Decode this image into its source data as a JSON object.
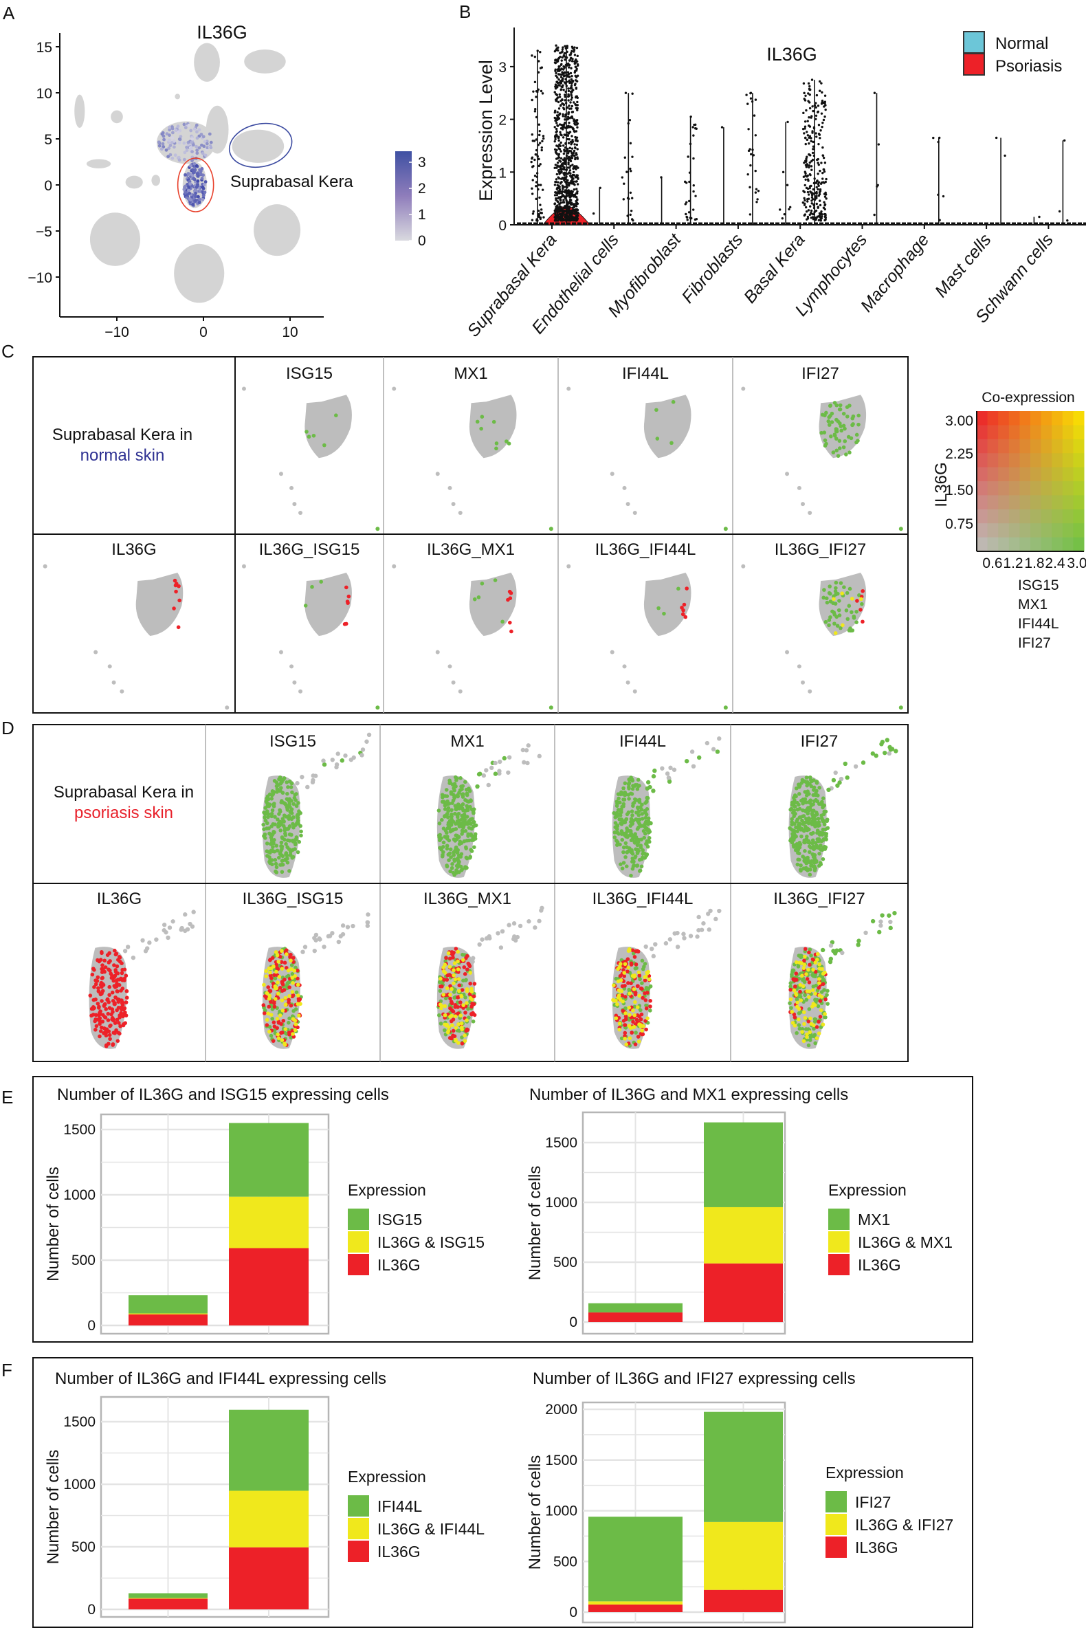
{
  "panel_labels": {
    "A": "A",
    "B": "B",
    "C": "C",
    "D": "D",
    "E": "E",
    "F": "F"
  },
  "panel_a": {
    "title": "IL36G",
    "annotation": "Suprabasal Kera",
    "x_ticks": [
      "−10",
      "0",
      "10"
    ],
    "y_ticks": [
      "15",
      "10",
      "5",
      "0",
      "−5",
      "−10"
    ],
    "colorbar_ticks": [
      "3",
      "2",
      "1",
      "0"
    ],
    "colorbar_colors": {
      "high": "#3f51a3",
      "low": "#d9d9df"
    },
    "circle_colors": {
      "normal": "#3b4aa0",
      "psoriasis": "#e8412c"
    }
  },
  "panel_c": {
    "row_label_1": "Suprabasal Kera in",
    "row_label_2": "normal skin",
    "row_label_2_color": "#2e3192",
    "top_titles": [
      "ISG15",
      "MX1",
      "IFI44L",
      "IFI27"
    ],
    "bottom_titles": [
      "IL36G",
      "IL36G_ISG15",
      "IL36G_MX1",
      "IL36G_IFI44L",
      "IL36G_IFI27"
    ]
  },
  "panel_d": {
    "row_label_1": "Suprabasal Kera in",
    "row_label_2": "psoriasis skin",
    "row_label_2_color": "#e8212b",
    "top_titles": [
      "ISG15",
      "MX1",
      "IFI44L",
      "IFI27"
    ],
    "bottom_titles": [
      "IL36G",
      "IL36G_ISG15",
      "IL36G_MX1",
      "IL36G_IFI44L",
      "IL36G_IFI27"
    ]
  },
  "coexpression_legend": {
    "title": "Co-expression",
    "y_label": "IL36G",
    "y_ticks": [
      "3.00",
      "2.25",
      "1.50",
      "0.75"
    ],
    "x_ticks": [
      "0.6",
      "1.2",
      "1.8",
      "2.4",
      "3.0"
    ],
    "genes": [
      "ISG15",
      "MX1",
      "IFI44L",
      "IFI27"
    ],
    "colors": {
      "none": "#c0c0c0",
      "il36g": "#ed1c24",
      "gene": "#6abe45",
      "both": "#ffe600"
    }
  },
  "chart_data": [
    {
      "type": "violin",
      "title": "IL36G",
      "ylabel": "Expression Level",
      "xlabel": "",
      "ylim": [
        0,
        3.5
      ],
      "y_ticks": [
        "0",
        "1",
        "2",
        "3"
      ],
      "categories": [
        "Suprabasal Kera",
        "Endothelial cells",
        "Myofibroblast",
        "Fibroblasts",
        "Basal Kera",
        "Lymphocytes",
        "Macrophage",
        "Mast cells",
        "Schwann cells"
      ],
      "legend": [
        {
          "name": "Normal",
          "color": "#6cc6d8"
        },
        {
          "name": "Psoriasis",
          "color": "#ed2128"
        }
      ],
      "series": [
        {
          "name": "Normal",
          "max_values": [
            3.3,
            0.7,
            0.9,
            1.85,
            1.95,
            0,
            0,
            0,
            0.15
          ]
        },
        {
          "name": "Psoriasis",
          "max_values": [
            3.4,
            2.5,
            2.05,
            2.5,
            2.75,
            2.5,
            1.65,
            1.65,
            1.6
          ]
        }
      ]
    },
    {
      "type": "bar",
      "stacked": true,
      "title": "Number of IL36G and ISG15 expressing cells",
      "ylabel": "Number of cells",
      "ylim": [
        0,
        1600
      ],
      "y_ticks": [
        "0",
        "500",
        "1000",
        "1500"
      ],
      "categories": [
        "",
        ""
      ],
      "legend_title": "Expression",
      "series": [
        {
          "name": "IL36G",
          "color": "#ed2128",
          "values": [
            85,
            592
          ]
        },
        {
          "name": "IL36G & ISG15",
          "color": "#f0e81c",
          "values": [
            7,
            394
          ]
        },
        {
          "name": "ISG15",
          "color": "#6cbb47",
          "values": [
            139,
            564
          ]
        }
      ]
    },
    {
      "type": "bar",
      "stacked": true,
      "title": "Number of IL36G and MX1 expressing cells",
      "ylabel": "Number of cells",
      "ylim": [
        0,
        1700
      ],
      "y_ticks": [
        "0",
        "500",
        "1000",
        "1500"
      ],
      "categories": [
        "",
        ""
      ],
      "legend_title": "Expression",
      "series": [
        {
          "name": "IL36G",
          "color": "#ed2128",
          "values": [
            80,
            490
          ]
        },
        {
          "name": "IL36G & MX1",
          "color": "#f0e81c",
          "values": [
            0,
            470
          ]
        },
        {
          "name": "MX1",
          "color": "#6cbb47",
          "values": [
            77,
            709
          ]
        }
      ]
    },
    {
      "type": "bar",
      "stacked": true,
      "title": "Number of IL36G and IFI44L expressing cells",
      "ylabel": "Number of cells",
      "ylim": [
        0,
        1650
      ],
      "y_ticks": [
        "0",
        "500",
        "1000",
        "1500"
      ],
      "categories": [
        "",
        ""
      ],
      "legend_title": "Expression",
      "series": [
        {
          "name": "IL36G",
          "color": "#ed2128",
          "values": [
            86,
            496
          ]
        },
        {
          "name": "IL36G & IFI44L",
          "color": "#f0e81c",
          "values": [
            5,
            452
          ]
        },
        {
          "name": "IFI44L",
          "color": "#6cbb47",
          "values": [
            38,
            647
          ]
        }
      ]
    },
    {
      "type": "bar",
      "stacked": true,
      "title": "Number of IL36G and IFI27 expressing cells",
      "ylabel": "Number of cells",
      "ylim": [
        0,
        2050
      ],
      "y_ticks": [
        "0",
        "500",
        "1000",
        "1500",
        "2000"
      ],
      "categories": [
        "",
        ""
      ],
      "legend_title": "Expression",
      "series": [
        {
          "name": "IL36G",
          "color": "#ed2128",
          "values": [
            75,
            219
          ]
        },
        {
          "name": "IL36G & IFI27",
          "color": "#f0e81c",
          "values": [
            31,
            670
          ]
        },
        {
          "name": "IFI27",
          "color": "#6cbb47",
          "values": [
            835,
            1086
          ]
        }
      ]
    }
  ]
}
